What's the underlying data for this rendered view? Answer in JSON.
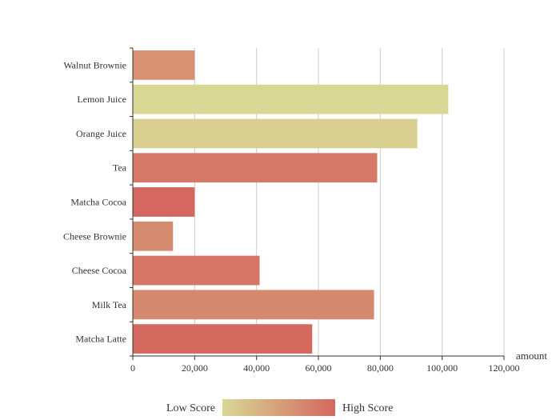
{
  "chart_data": {
    "type": "bar",
    "orientation": "horizontal",
    "title": "",
    "xlabel": "amount",
    "ylabel": "",
    "categories": [
      "Walnut Brownie",
      "Lemon Juice",
      "Orange Juice",
      "Tea",
      "Matcha Cocoa",
      "Cheese Brownie",
      "Cheese Cocoa",
      "Milk Tea",
      "Matcha Latte"
    ],
    "values": [
      20000,
      102000,
      92000,
      79000,
      20000,
      13000,
      41000,
      78000,
      58000
    ],
    "scores": [
      0.62,
      0.0,
      0.08,
      0.85,
      1.0,
      0.68,
      0.88,
      0.7,
      0.98
    ],
    "xlim": [
      0,
      120000
    ],
    "xticks": [
      "0",
      "20,000",
      "40,000",
      "60,000",
      "80,000",
      "100,000",
      "120,000"
    ],
    "grid": "vertical",
    "color_scale": {
      "low_label": "Low Score",
      "high_label": "High Score",
      "low_color": "#d8d894",
      "high_color": "#d4675f"
    }
  }
}
